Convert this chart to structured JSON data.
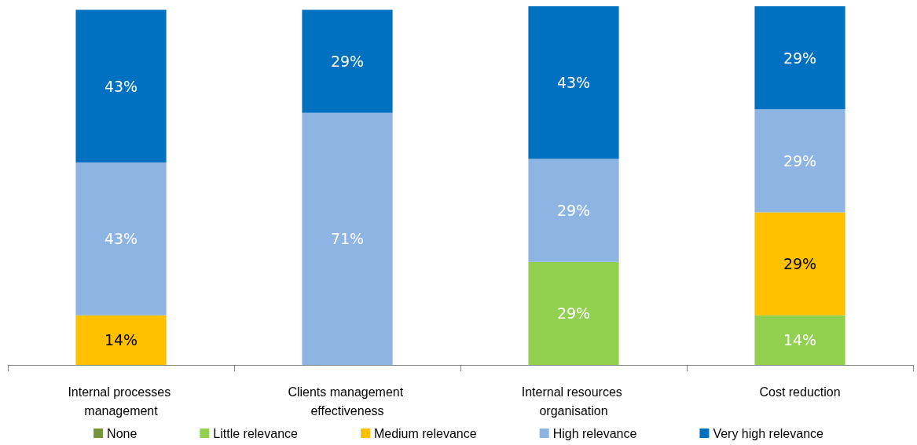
{
  "chart_data": {
    "type": "bar",
    "stacked": true,
    "legend": "bottom",
    "grid": false,
    "categories": [
      "Internal processes management",
      "Clients management effectiveness",
      "Internal resources organisation",
      "Cost reduction"
    ],
    "series": [
      {
        "name": "None",
        "color": "#77933c",
        "values": [
          null,
          null,
          null,
          null
        ],
        "value_labels": [
          null,
          null,
          null,
          null
        ]
      },
      {
        "name": "Little relevance",
        "color": "#92d050",
        "values": [
          null,
          null,
          29,
          14
        ],
        "value_labels": [
          null,
          null,
          "29%",
          "14%"
        ]
      },
      {
        "name": "Medium relevance",
        "color": "#ffc000",
        "values": [
          14,
          null,
          null,
          29
        ],
        "value_labels": [
          "14%",
          null,
          null,
          "29%"
        ]
      },
      {
        "name": "High relevance",
        "color": "#8eb4e3",
        "values": [
          43,
          71,
          29,
          29
        ],
        "value_labels": [
          "43%",
          "71%",
          "29%",
          "29%"
        ]
      },
      {
        "name": "Very high relevance",
        "color": "#0070c0",
        "values": [
          43,
          29,
          43,
          29
        ],
        "value_labels": [
          "43%",
          "29%",
          "43%",
          "29%"
        ]
      }
    ]
  }
}
